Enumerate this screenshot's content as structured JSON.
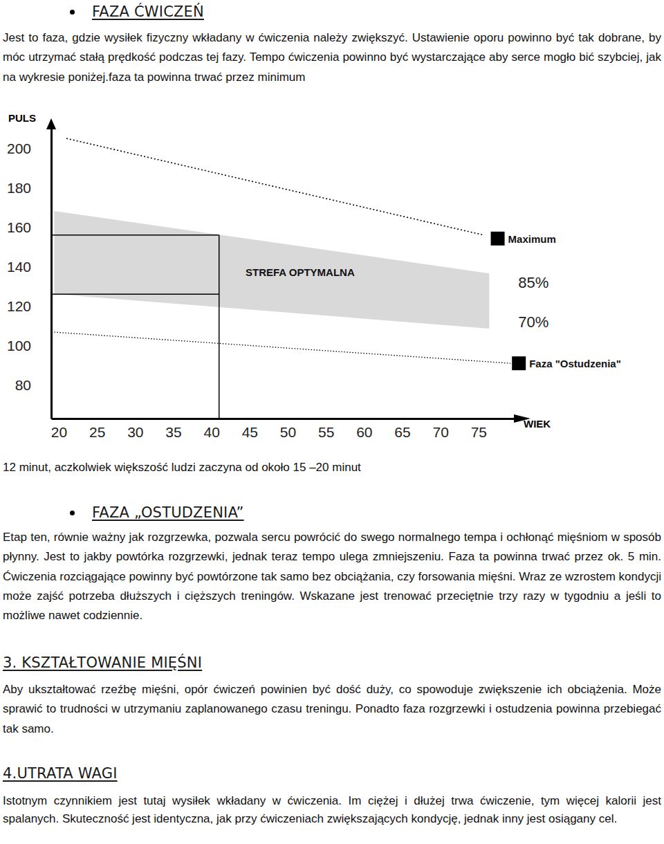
{
  "sections": [
    {
      "heading": "FAZA ĆWICZEŃ",
      "text_before_chart": "Jest to faza, gdzie wysiłek fizyczny wkładany w ćwiczenia należy zwiększyć. Ustawienie oporu powinno być tak dobrane, by móc utrzymać stałą prędkość podczas tej fazy. Tempo ćwiczenia powinno być wystarczające aby serce mogło bić szybciej, jak na wykresie poniżej.faza ta powinna trwać przez minimum",
      "text_after_chart": "12 minut, aczkolwiek większość ludzi zaczyna od około 15 –20 minut"
    },
    {
      "heading": "FAZA „OSTUDZENIA”",
      "text": "Etap ten, równie ważny jak rozgrzewka, pozwala sercu powrócić do swego normalnego tempa i ochłonąć mięśniom w sposób płynny. Jest to jakby powtórka rozgrzewki, jednak teraz tempo ulega zmniejszeniu. Faza ta powinna trwać przez ok. 5 min. Ćwiczenia rozciągające powinny być powtórzone tak samo bez obciążania, czy forsowania mięśni. Wraz ze wzrostem kondycji może zajść potrzeba dłuższych i cięższych treningów. Wskazane jest trenować przeciętnie trzy razy w tygodniu a jeśli to możliwe nawet codziennie."
    },
    {
      "heading": "3. KSZTAŁTOWANIE MIĘŚNI",
      "text": "Aby ukształtować rzeźbę mięśni, opór ćwiczeń powinien być dość duży, co spowoduje zwiększenie ich obciążenia. Może sprawić to trudności w utrzymaniu zaplanowanego czasu treningu. Ponadto faza rozgrzewki i ostudzenia powinna przebiegać tak samo."
    },
    {
      "heading": "4.UTRATA WAGI",
      "text": "Istotnym czynnikiem jest tutaj wysiłek wkładany w ćwiczenia. Im ciężej i dłużej trwa ćwiczenie, tym więcej kalorii jest spalanych. Skuteczność jest identyczna, jak przy ćwiczeniach zwiększających kondycję, jednak inny jest osiągany cel."
    }
  ],
  "chart_data": {
    "type": "line",
    "y_label": "PULS",
    "x_label": "WIEK",
    "xlim": [
      19,
      80
    ],
    "xticks": [
      20,
      25,
      30,
      35,
      40,
      45,
      50,
      55,
      60,
      65,
      70,
      75
    ],
    "ylim": [
      63,
      211
    ],
    "yticks": [
      80,
      100,
      120,
      140,
      160,
      180,
      200
    ],
    "annotations": [
      "STREFA OPTYMALNA"
    ],
    "guide": {
      "x": 41,
      "y": [
        126,
        156
      ]
    },
    "series": [
      {
        "name": "Maximum",
        "type": "line",
        "color": "#000000",
        "line_style": "dotted",
        "marker": "square",
        "x": [
          21,
          75.7
        ],
        "values": [
          205,
          156
        ]
      },
      {
        "name": "85%",
        "type": "area",
        "color": "#d9d9d9",
        "x": [
          19.4,
          76.4
        ],
        "values": [
          168.2,
          136.6
        ]
      },
      {
        "name": "70%",
        "type": "area",
        "color": "#d9d9d9",
        "x": [
          19.4,
          76.4
        ],
        "values": [
          126.1,
          108.6
        ]
      },
      {
        "name": "Faza \"Ostudzenia\"",
        "type": "line",
        "color": "#000000",
        "line_style": "dotted",
        "marker": "square",
        "x": [
          19.4,
          79.2
        ],
        "values": [
          106.8,
          91
        ]
      }
    ]
  }
}
